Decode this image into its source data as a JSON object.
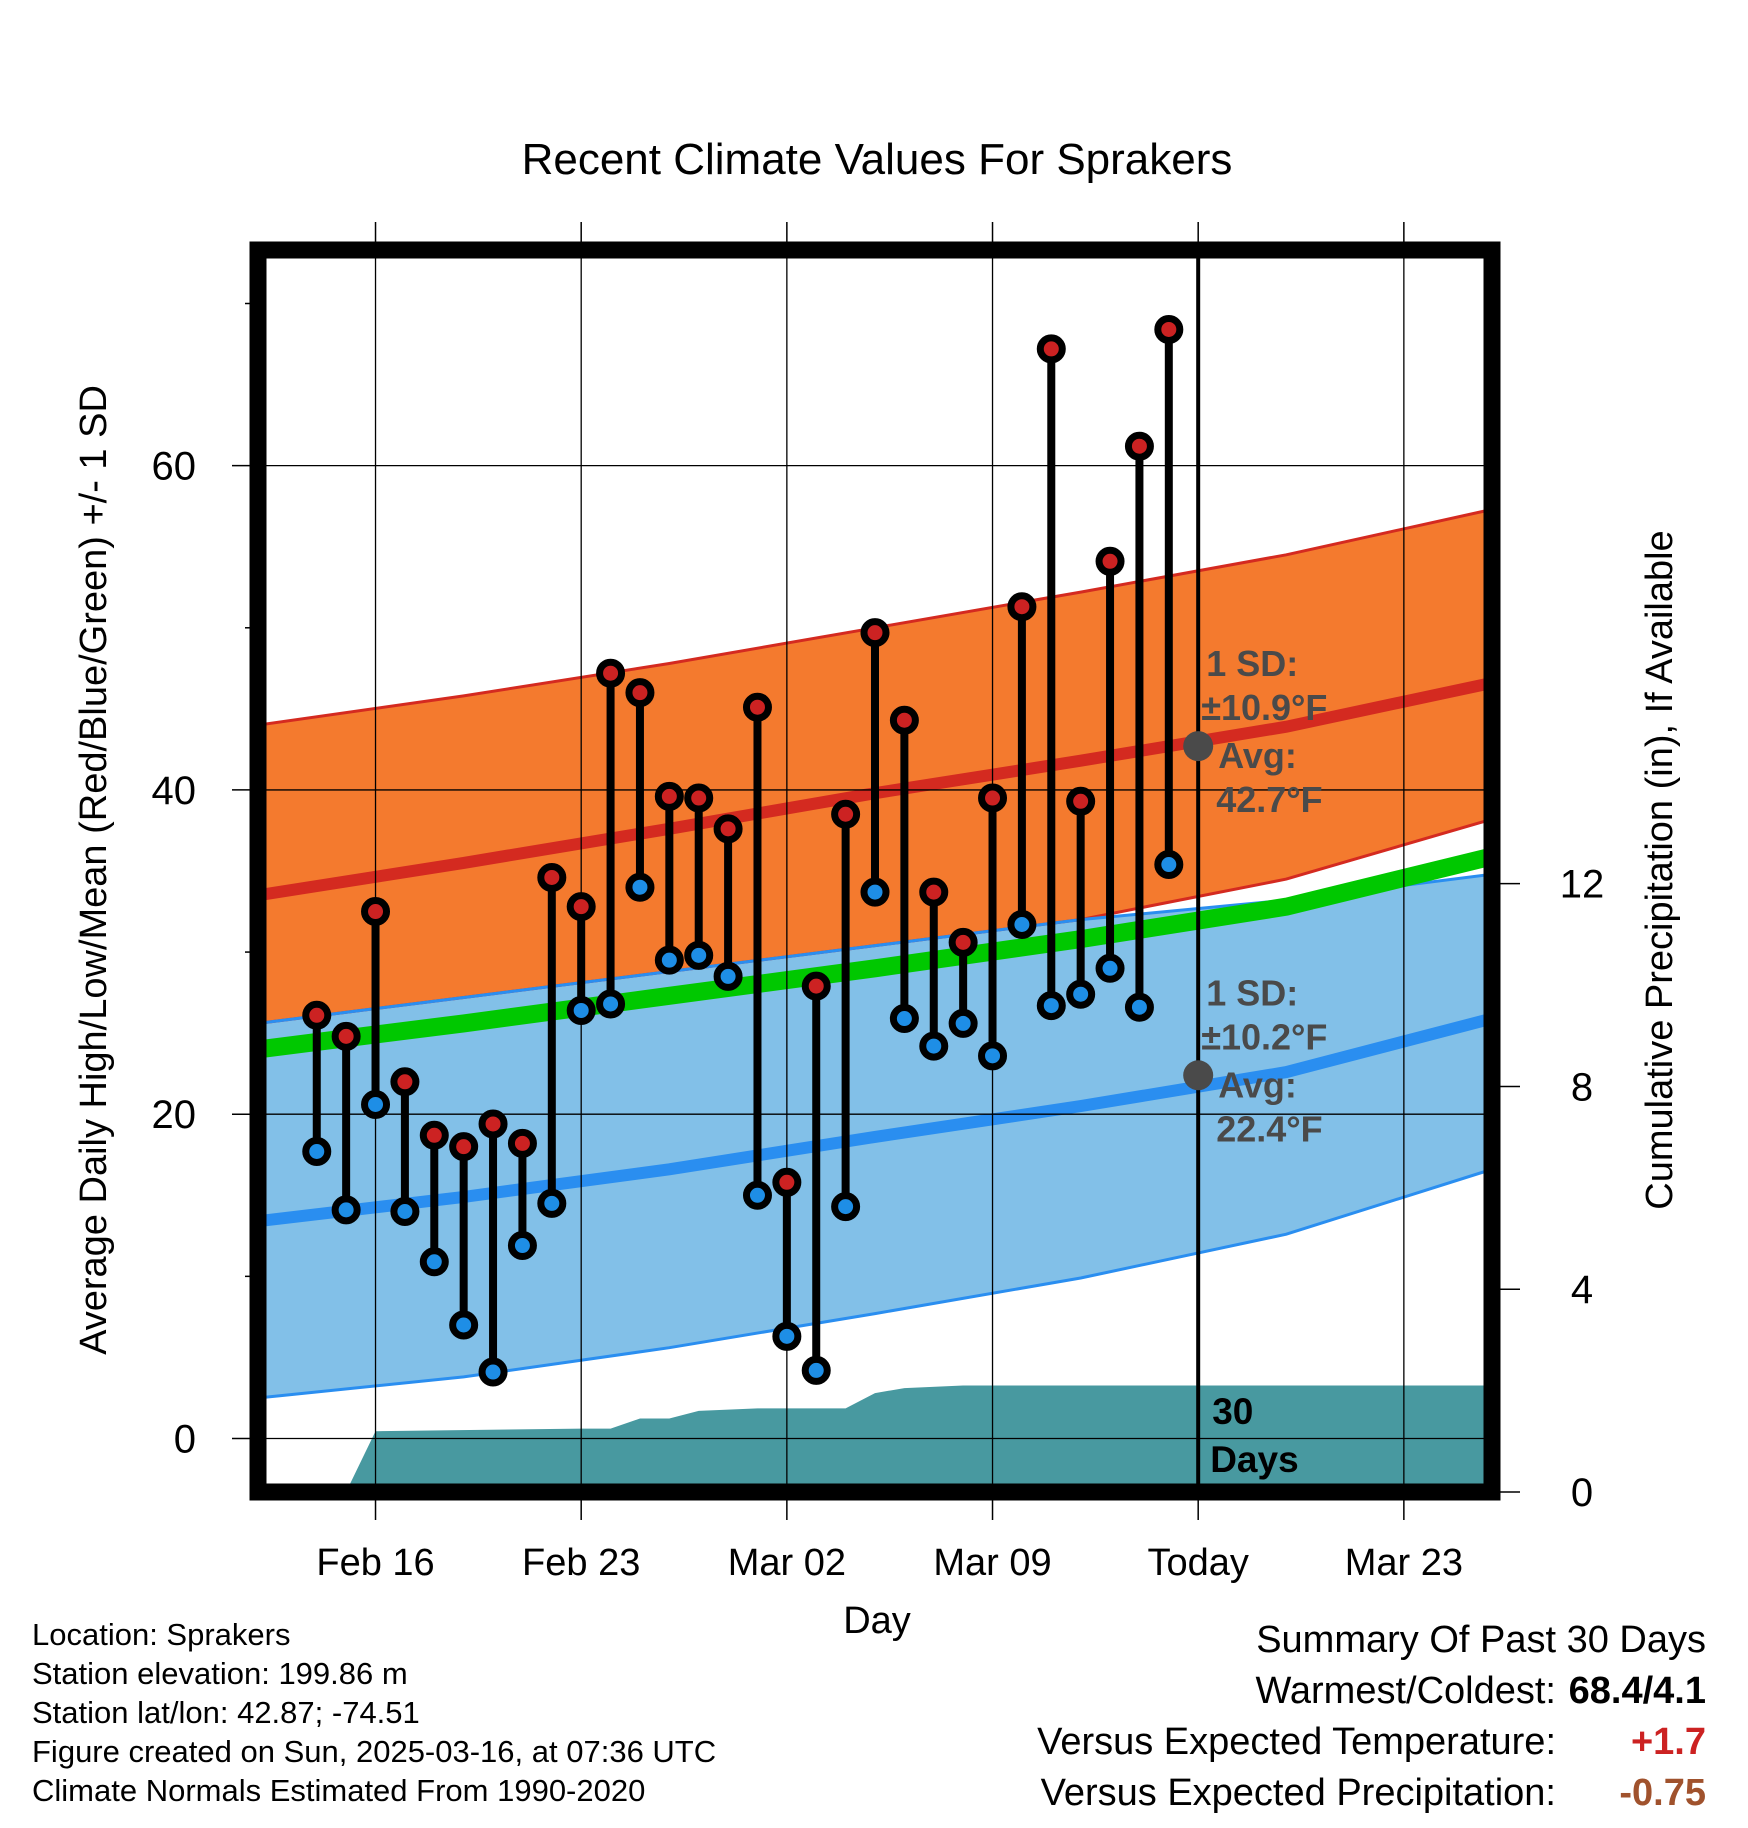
{
  "colors": {
    "high_line": "#d42a20",
    "high_band": "#f47a2e",
    "low_line": "#2a8ef0",
    "low_band": "#82c0e8",
    "mean_line": "#00c800",
    "precip_fill": "#4899a0",
    "high_marker": "#cc2222",
    "low_marker": "#1e8ee6",
    "annotation": "#4a4a4a",
    "warm_value": "#cc2222",
    "precip_value": "#a0522d"
  },
  "chart_data": {
    "type": "line",
    "title": "Recent Climate Values For Sprakers",
    "xlabel": "Day",
    "ylabel": "Average Daily High/Low/Mean (Red/Blue/Green) +/- 1 SD",
    "y2label": "Cumulative Precipitation (in), If Available",
    "xlim": [
      "2025-02-12",
      "2025-03-26"
    ],
    "ylim": [
      -3.3,
      73.3
    ],
    "y2lim": [
      0,
      24.5
    ],
    "x_ticks": [
      {
        "x": "2025-02-16",
        "label": "Feb 16"
      },
      {
        "x": "2025-02-23",
        "label": "Feb 23"
      },
      {
        "x": "2025-03-02",
        "label": "Mar 02"
      },
      {
        "x": "2025-03-09",
        "label": "Mar 09"
      },
      {
        "x": "2025-03-16",
        "label": "Today"
      },
      {
        "x": "2025-03-23",
        "label": "Mar 23"
      }
    ],
    "y_ticks": [
      0,
      20,
      40,
      60
    ],
    "y_minor_ticks": [
      10,
      30,
      50,
      70
    ],
    "y2_ticks": [
      0,
      4,
      8,
      12
    ],
    "grid": true,
    "normal_high": {
      "dates": [
        "2025-02-12",
        "2025-02-19",
        "2025-02-26",
        "2025-03-05",
        "2025-03-12",
        "2025-03-19",
        "2025-03-26"
      ],
      "mean": [
        33.5,
        35.5,
        37.6,
        39.8,
        41.8,
        43.9,
        46.6
      ],
      "upper": [
        44.0,
        45.8,
        47.8,
        50.0,
        52.2,
        54.5,
        57.3
      ],
      "lower": [
        25.6,
        27.2,
        28.8,
        30.4,
        32.0,
        34.5,
        38.2
      ]
    },
    "normal_low": {
      "dates": [
        "2025-02-12",
        "2025-02-19",
        "2025-02-26",
        "2025-03-05",
        "2025-03-12",
        "2025-03-19",
        "2025-03-26"
      ],
      "mean": [
        13.4,
        14.9,
        16.6,
        18.6,
        20.5,
        22.6,
        25.9
      ],
      "upper": [
        25.6,
        27.2,
        28.8,
        30.4,
        32.0,
        33.2,
        34.8
      ],
      "lower": [
        2.5,
        3.8,
        5.6,
        7.7,
        9.9,
        12.6,
        16.6
      ]
    },
    "normal_mean": {
      "dates": [
        "2025-02-12",
        "2025-02-19",
        "2025-02-26",
        "2025-03-05",
        "2025-03-12",
        "2025-03-19",
        "2025-03-26"
      ],
      "values": [
        24.0,
        25.6,
        27.3,
        29.0,
        30.8,
        32.8,
        35.9
      ]
    },
    "daily_observations": {
      "dates": [
        "2025-02-14",
        "2025-02-15",
        "2025-02-16",
        "2025-02-17",
        "2025-02-18",
        "2025-02-19",
        "2025-02-20",
        "2025-02-21",
        "2025-02-22",
        "2025-02-23",
        "2025-02-24",
        "2025-02-25",
        "2025-02-26",
        "2025-02-27",
        "2025-02-28",
        "2025-03-01",
        "2025-03-02",
        "2025-03-03",
        "2025-03-04",
        "2025-03-05",
        "2025-03-06",
        "2025-03-07",
        "2025-03-08",
        "2025-03-09",
        "2025-03-10",
        "2025-03-11",
        "2025-03-12",
        "2025-03-13",
        "2025-03-14",
        "2025-03-15"
      ],
      "highs": [
        26.1,
        24.8,
        32.5,
        22.0,
        18.7,
        18.0,
        19.4,
        18.2,
        34.6,
        32.8,
        47.2,
        46.0,
        39.6,
        39.5,
        37.6,
        45.1,
        15.8,
        27.9,
        38.5,
        49.7,
        44.3,
        33.7,
        30.6,
        39.5,
        51.3,
        67.2,
        39.3,
        54.1,
        61.2,
        68.4
      ],
      "lows": [
        17.7,
        14.1,
        20.6,
        14.0,
        10.9,
        7.0,
        4.1,
        11.9,
        14.5,
        26.4,
        26.8,
        34.0,
        29.5,
        29.8,
        28.5,
        15.0,
        6.3,
        4.2,
        14.3,
        33.7,
        25.9,
        24.2,
        25.6,
        23.6,
        31.7,
        26.7,
        27.4,
        29.0,
        26.6,
        35.4
      ]
    },
    "cumulative_precipitation": {
      "dates": [
        "2025-02-13",
        "2025-02-14",
        "2025-02-15",
        "2025-02-16",
        "2025-02-23",
        "2025-02-24",
        "2025-02-25",
        "2025-02-26",
        "2025-02-27",
        "2025-03-01",
        "2025-03-04",
        "2025-03-05",
        "2025-03-06",
        "2025-03-08",
        "2025-03-16",
        "2025-03-26"
      ],
      "values": [
        0.0,
        0.0,
        0.0,
        1.2,
        1.25,
        1.25,
        1.45,
        1.45,
        1.6,
        1.65,
        1.65,
        1.95,
        2.05,
        2.1,
        2.1,
        2.1
      ]
    },
    "annotations": {
      "high_sd_label": "1 SD:",
      "high_sd_value": "±10.9°F",
      "high_avg_label": "Avg:",
      "high_avg_value": "42.7°F",
      "low_sd_label": "1 SD:",
      "low_sd_value": "±10.2°F",
      "low_avg_label": "Avg:",
      "low_avg_value": "22.4°F",
      "today_high_avg": 42.7,
      "today_low_avg": 22.4,
      "days_number": "30",
      "days_word": "Days"
    }
  },
  "info": {
    "location": "Location: Sprakers",
    "elevation": "Station elevation: 199.86 m",
    "latlon": "Station lat/lon: 42.87; -74.51",
    "created": "Figure created on Sun, 2025-03-16, at 07:36 UTC",
    "normals": "Climate Normals Estimated From 1990-2020"
  },
  "summary": {
    "title": "Summary Of Past 30 Days",
    "warm_cold_label": "Warmest/Coldest:",
    "warm_cold_value": "68.4/4.1",
    "temp_label": "Versus Expected Temperature:",
    "temp_value": "+1.7",
    "precip_label": "Versus Expected Precipitation:",
    "precip_value": "-0.75"
  }
}
